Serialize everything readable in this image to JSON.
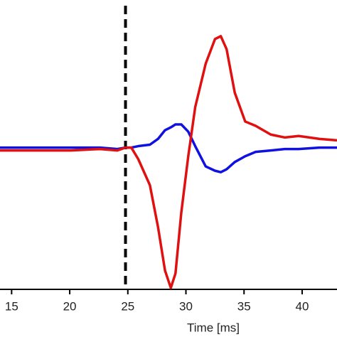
{
  "chart_data": {
    "type": "line",
    "xlabel": "Time [ms]",
    "xlim": [
      14,
      43
    ],
    "xticks": [
      15,
      20,
      25,
      30,
      35,
      40
    ],
    "ylim": [
      -1,
      1
    ],
    "vline_x": 24.8,
    "x": [
      14.0,
      20.1,
      22.6,
      24.1,
      24.8,
      25.3,
      25.9,
      26.9,
      27.6,
      28.2,
      28.7,
      29.1,
      29.6,
      30.2,
      30.8,
      31.7,
      32.5,
      33.0,
      33.5,
      34.2,
      35.1,
      36.0,
      37.3,
      38.5,
      39.7,
      41.5,
      43.0
    ],
    "series": [
      {
        "name": "red",
        "color": "#e01010",
        "values": [
          -0.04,
          -0.04,
          -0.03,
          -0.04,
          -0.02,
          -0.02,
          -0.1,
          -0.28,
          -0.57,
          -0.87,
          -0.99,
          -0.89,
          -0.47,
          -0.08,
          0.26,
          0.56,
          0.73,
          0.75,
          0.66,
          0.36,
          0.16,
          0.13,
          0.07,
          0.05,
          0.06,
          0.04,
          0.03
        ]
      },
      {
        "name": "blue",
        "color": "#1010e0",
        "values": [
          -0.02,
          -0.02,
          -0.02,
          -0.03,
          -0.02,
          -0.02,
          -0.01,
          0.0,
          0.04,
          0.1,
          0.12,
          0.14,
          0.14,
          0.09,
          -0.01,
          -0.15,
          -0.18,
          -0.19,
          -0.17,
          -0.12,
          -0.08,
          -0.05,
          -0.04,
          -0.03,
          -0.03,
          -0.02,
          -0.02
        ]
      }
    ]
  }
}
